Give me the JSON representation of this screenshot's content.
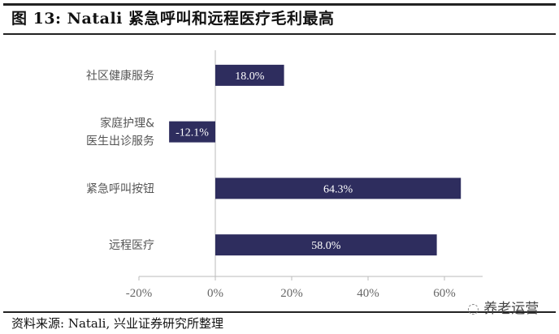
{
  "header": {
    "title": "图 13: Natali 紧急呼叫和远程医疗毛利最高"
  },
  "footer": {
    "source": "资料来源: Natali, 兴业证券研究所整理"
  },
  "watermark": {
    "text": "养老运营",
    "icon": "wechat-icon"
  },
  "chart_data": {
    "type": "bar",
    "orientation": "horizontal",
    "categories": [
      "社区健康服务",
      "家庭护理&\n医生出诊服务",
      "紧急呼叫按钮",
      "远程医疗"
    ],
    "values": [
      18.0,
      -12.1,
      64.3,
      58.0
    ],
    "data_labels": [
      "18.0%",
      "-12.1%",
      "64.3%",
      "58.0%"
    ],
    "xlim": [
      -20,
      70
    ],
    "xticks": [
      -20,
      0,
      20,
      40,
      60
    ],
    "xtick_labels": [
      "-20%",
      "0%",
      "20%",
      "40%",
      "60%"
    ],
    "grid": false,
    "bar_color": "#2e2d5e",
    "label_color": "#ffffff"
  }
}
